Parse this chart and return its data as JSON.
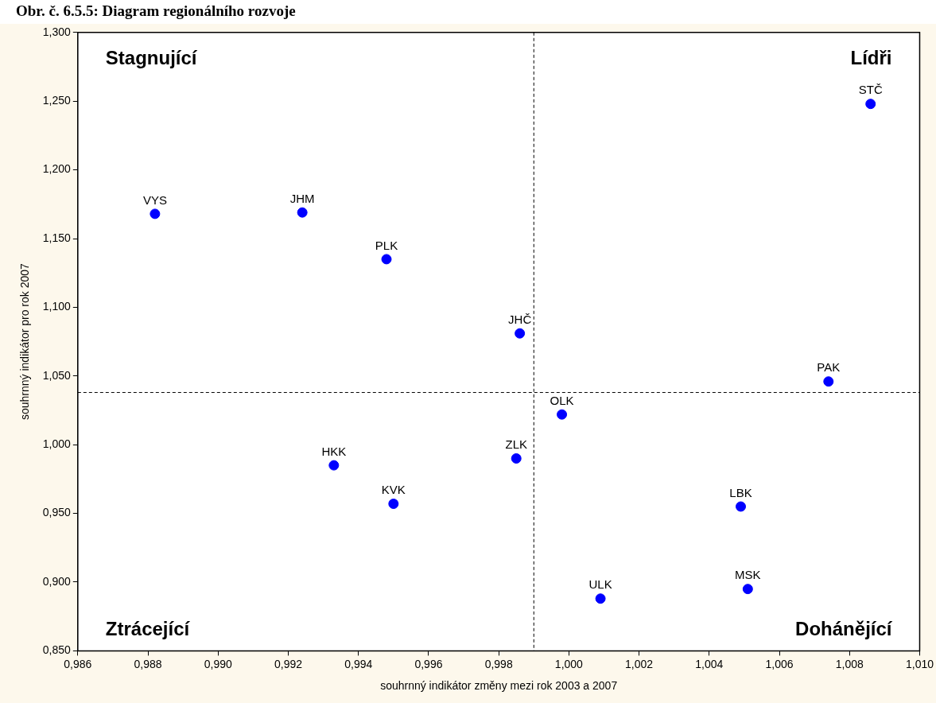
{
  "chart_data": {
    "type": "scatter",
    "title": "Obr. č. 6.5.5: Diagram regionálního rozvoje",
    "xlabel": "souhrnný indikátor změny mezi rok 2003 a 2007",
    "ylabel": "souhrnný indikátor pro rok 2007",
    "series": [
      {
        "color": "#0000ff",
        "x": [
          1.0086,
          0.9882,
          0.9924,
          0.9948,
          0.9986,
          1.0074,
          0.9998,
          0.9933,
          0.9985,
          0.995,
          1.0049,
          1.0051,
          1.0009
        ],
        "values": [
          1.248,
          1.168,
          1.169,
          1.135,
          1.081,
          1.046,
          1.022,
          0.985,
          0.99,
          0.957,
          0.955,
          0.895,
          0.888
        ],
        "value_labels": [
          "STČ",
          "VYS",
          "JHM",
          "PLK",
          "JHČ",
          "PAK",
          "OLK",
          "HKK",
          "ZLK",
          "KVK",
          "LBK",
          "MSK",
          "ULK"
        ]
      }
    ],
    "xlim": [
      0.986,
      1.01
    ],
    "xticks": [
      {
        "value": 0.986,
        "label": "0,986"
      },
      {
        "value": 0.988,
        "label": "0,988"
      },
      {
        "value": 0.99,
        "label": "0,990"
      },
      {
        "value": 0.992,
        "label": "0,992"
      },
      {
        "value": 0.994,
        "label": "0,994"
      },
      {
        "value": 0.996,
        "label": "0,996"
      },
      {
        "value": 0.998,
        "label": "0,998"
      },
      {
        "value": 1.0,
        "label": "1,000"
      },
      {
        "value": 1.002,
        "label": "1,002"
      },
      {
        "value": 1.004,
        "label": "1,004"
      },
      {
        "value": 1.006,
        "label": "1,006"
      },
      {
        "value": 1.008,
        "label": "1,008"
      },
      {
        "value": 1.01,
        "label": "1,010"
      }
    ],
    "ylim": [
      0.85,
      1.3
    ],
    "yticks": [
      {
        "value": 0.85,
        "label": "0,850"
      },
      {
        "value": 0.9,
        "label": "0,900"
      },
      {
        "value": 0.95,
        "label": "0,950"
      },
      {
        "value": 1.0,
        "label": "1,000"
      },
      {
        "value": 1.05,
        "label": "1,050"
      },
      {
        "value": 1.1,
        "label": "1,100"
      },
      {
        "value": 1.15,
        "label": "1,150"
      },
      {
        "value": 1.2,
        "label": "1,200"
      },
      {
        "value": 1.25,
        "label": "1,250"
      },
      {
        "value": 1.3,
        "label": "1,300"
      }
    ],
    "ref_lines": [
      {
        "axis": "x",
        "value": 0.999,
        "line_style": "dashed"
      },
      {
        "axis": "y",
        "value": 1.038,
        "line_style": "dashed"
      }
    ],
    "annotations": [
      "Stagnující",
      "Lídři",
      "Ztrácející",
      "Dohánějící"
    ],
    "marker": "circle",
    "grid": false,
    "legend": false
  }
}
